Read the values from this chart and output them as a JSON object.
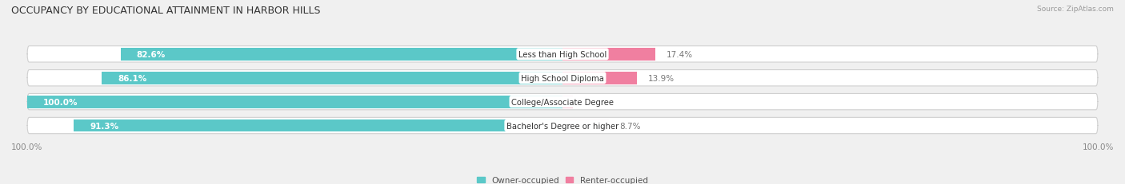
{
  "title": "OCCUPANCY BY EDUCATIONAL ATTAINMENT IN HARBOR HILLS",
  "source": "Source: ZipAtlas.com",
  "categories": [
    "Less than High School",
    "High School Diploma",
    "College/Associate Degree",
    "Bachelor's Degree or higher"
  ],
  "owner_pct": [
    82.6,
    86.1,
    100.0,
    91.3
  ],
  "renter_pct": [
    17.4,
    13.9,
    0.0,
    8.7
  ],
  "owner_color": "#5BC8C8",
  "renter_color": "#F07FA0",
  "renter_color_light": "#F5B8CB",
  "bar_bg_color": "#E0E0E0",
  "bar_bg_light": "#EBEBEB",
  "owner_label": "Owner-occupied",
  "renter_label": "Renter-occupied",
  "title_fontsize": 9,
  "label_fontsize": 7.5,
  "tick_fontsize": 7.5,
  "bar_height": 0.68,
  "figsize": [
    14.06,
    2.32
  ],
  "dpi": 100,
  "background_color": "#F0F0F0",
  "axis_label_left": "100.0%",
  "axis_label_right": "100.0%"
}
